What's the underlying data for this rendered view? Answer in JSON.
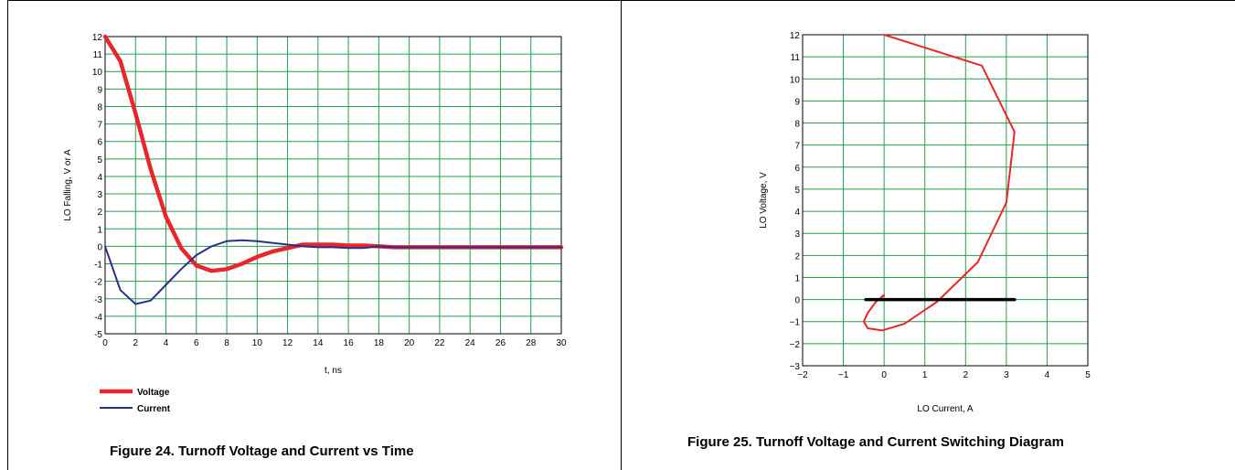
{
  "figure24": {
    "caption": "Figure 24. Turnoff Voltage and Current vs Time"
  },
  "figure25": {
    "caption": "Figure 25. Turnoff Voltage and Current Switching Diagram"
  },
  "colors": {
    "grid": "#21a04b",
    "voltage": "#e8262b",
    "current": "#2b2f8c",
    "zero_line": "#000000"
  },
  "chart_data": [
    {
      "type": "line",
      "xlabel": "t, ns",
      "ylabel": "LO Falling, V or A",
      "xlim": [
        0,
        30
      ],
      "ylim": [
        -5,
        12
      ],
      "x_ticks": [
        0,
        2,
        4,
        6,
        8,
        10,
        12,
        14,
        16,
        18,
        20,
        22,
        24,
        26,
        28,
        30
      ],
      "y_ticks": [
        -5,
        -4,
        -3,
        -2,
        -1,
        0,
        1,
        2,
        3,
        4,
        5,
        6,
        7,
        8,
        9,
        10,
        11,
        12
      ],
      "grid": true,
      "legend_position": "bottom-left",
      "series": [
        {
          "name": "Voltage",
          "x": [
            0,
            1,
            2,
            3,
            4,
            5,
            6,
            7,
            8,
            9,
            10,
            11,
            12,
            13,
            14,
            15,
            16,
            17,
            18,
            19,
            20,
            22,
            24,
            26,
            28,
            30
          ],
          "y": [
            12,
            10.6,
            7.6,
            4.4,
            1.7,
            -0.1,
            -1.1,
            -1.4,
            -1.3,
            -1.0,
            -0.6,
            -0.3,
            -0.1,
            0.1,
            0.1,
            0.1,
            0.05,
            0.05,
            0.0,
            -0.05,
            -0.05,
            -0.05,
            -0.05,
            -0.05,
            -0.05,
            -0.05
          ]
        },
        {
          "name": "Current",
          "x": [
            0,
            1,
            2,
            3,
            4,
            5,
            6,
            7,
            8,
            9,
            10,
            11,
            12,
            13,
            14,
            15,
            16,
            17,
            18,
            19,
            20,
            22,
            24,
            26,
            28,
            30
          ],
          "y": [
            0,
            -2.5,
            -3.3,
            -3.1,
            -2.2,
            -1.3,
            -0.5,
            0.0,
            0.3,
            0.35,
            0.3,
            0.2,
            0.1,
            0.0,
            -0.05,
            -0.05,
            -0.1,
            -0.1,
            0.0,
            -0.05,
            -0.05,
            -0.05,
            -0.05,
            -0.05,
            -0.05,
            -0.05
          ]
        }
      ]
    },
    {
      "type": "line",
      "xlabel": "LO Current, A",
      "ylabel": "LO Voltage, V",
      "xlim": [
        -2,
        5
      ],
      "ylim": [
        -3,
        12
      ],
      "x_ticks": [
        "−2",
        "−1",
        "0",
        "1",
        "2",
        "3",
        "4",
        "5"
      ],
      "y_ticks": [
        "−3",
        "−2",
        "−1",
        "0",
        "1",
        "2",
        "3",
        "4",
        "5",
        "6",
        "7",
        "8",
        "9",
        "10",
        "11",
        "12"
      ],
      "grid": true,
      "series": [
        {
          "x": [
            0,
            2.4,
            3.2,
            3.0,
            2.3,
            1.3,
            0.5,
            -0.05,
            -0.4,
            -0.5,
            -0.4,
            -0.2,
            0.0,
            -0.05
          ],
          "y": [
            12,
            10.6,
            7.6,
            4.4,
            1.7,
            -0.1,
            -1.1,
            -1.4,
            -1.3,
            -1.0,
            -0.6,
            -0.1,
            0.2,
            0.15
          ]
        },
        {
          "x": [
            -0.45,
            3.2
          ],
          "y": [
            0,
            0
          ]
        }
      ]
    }
  ]
}
